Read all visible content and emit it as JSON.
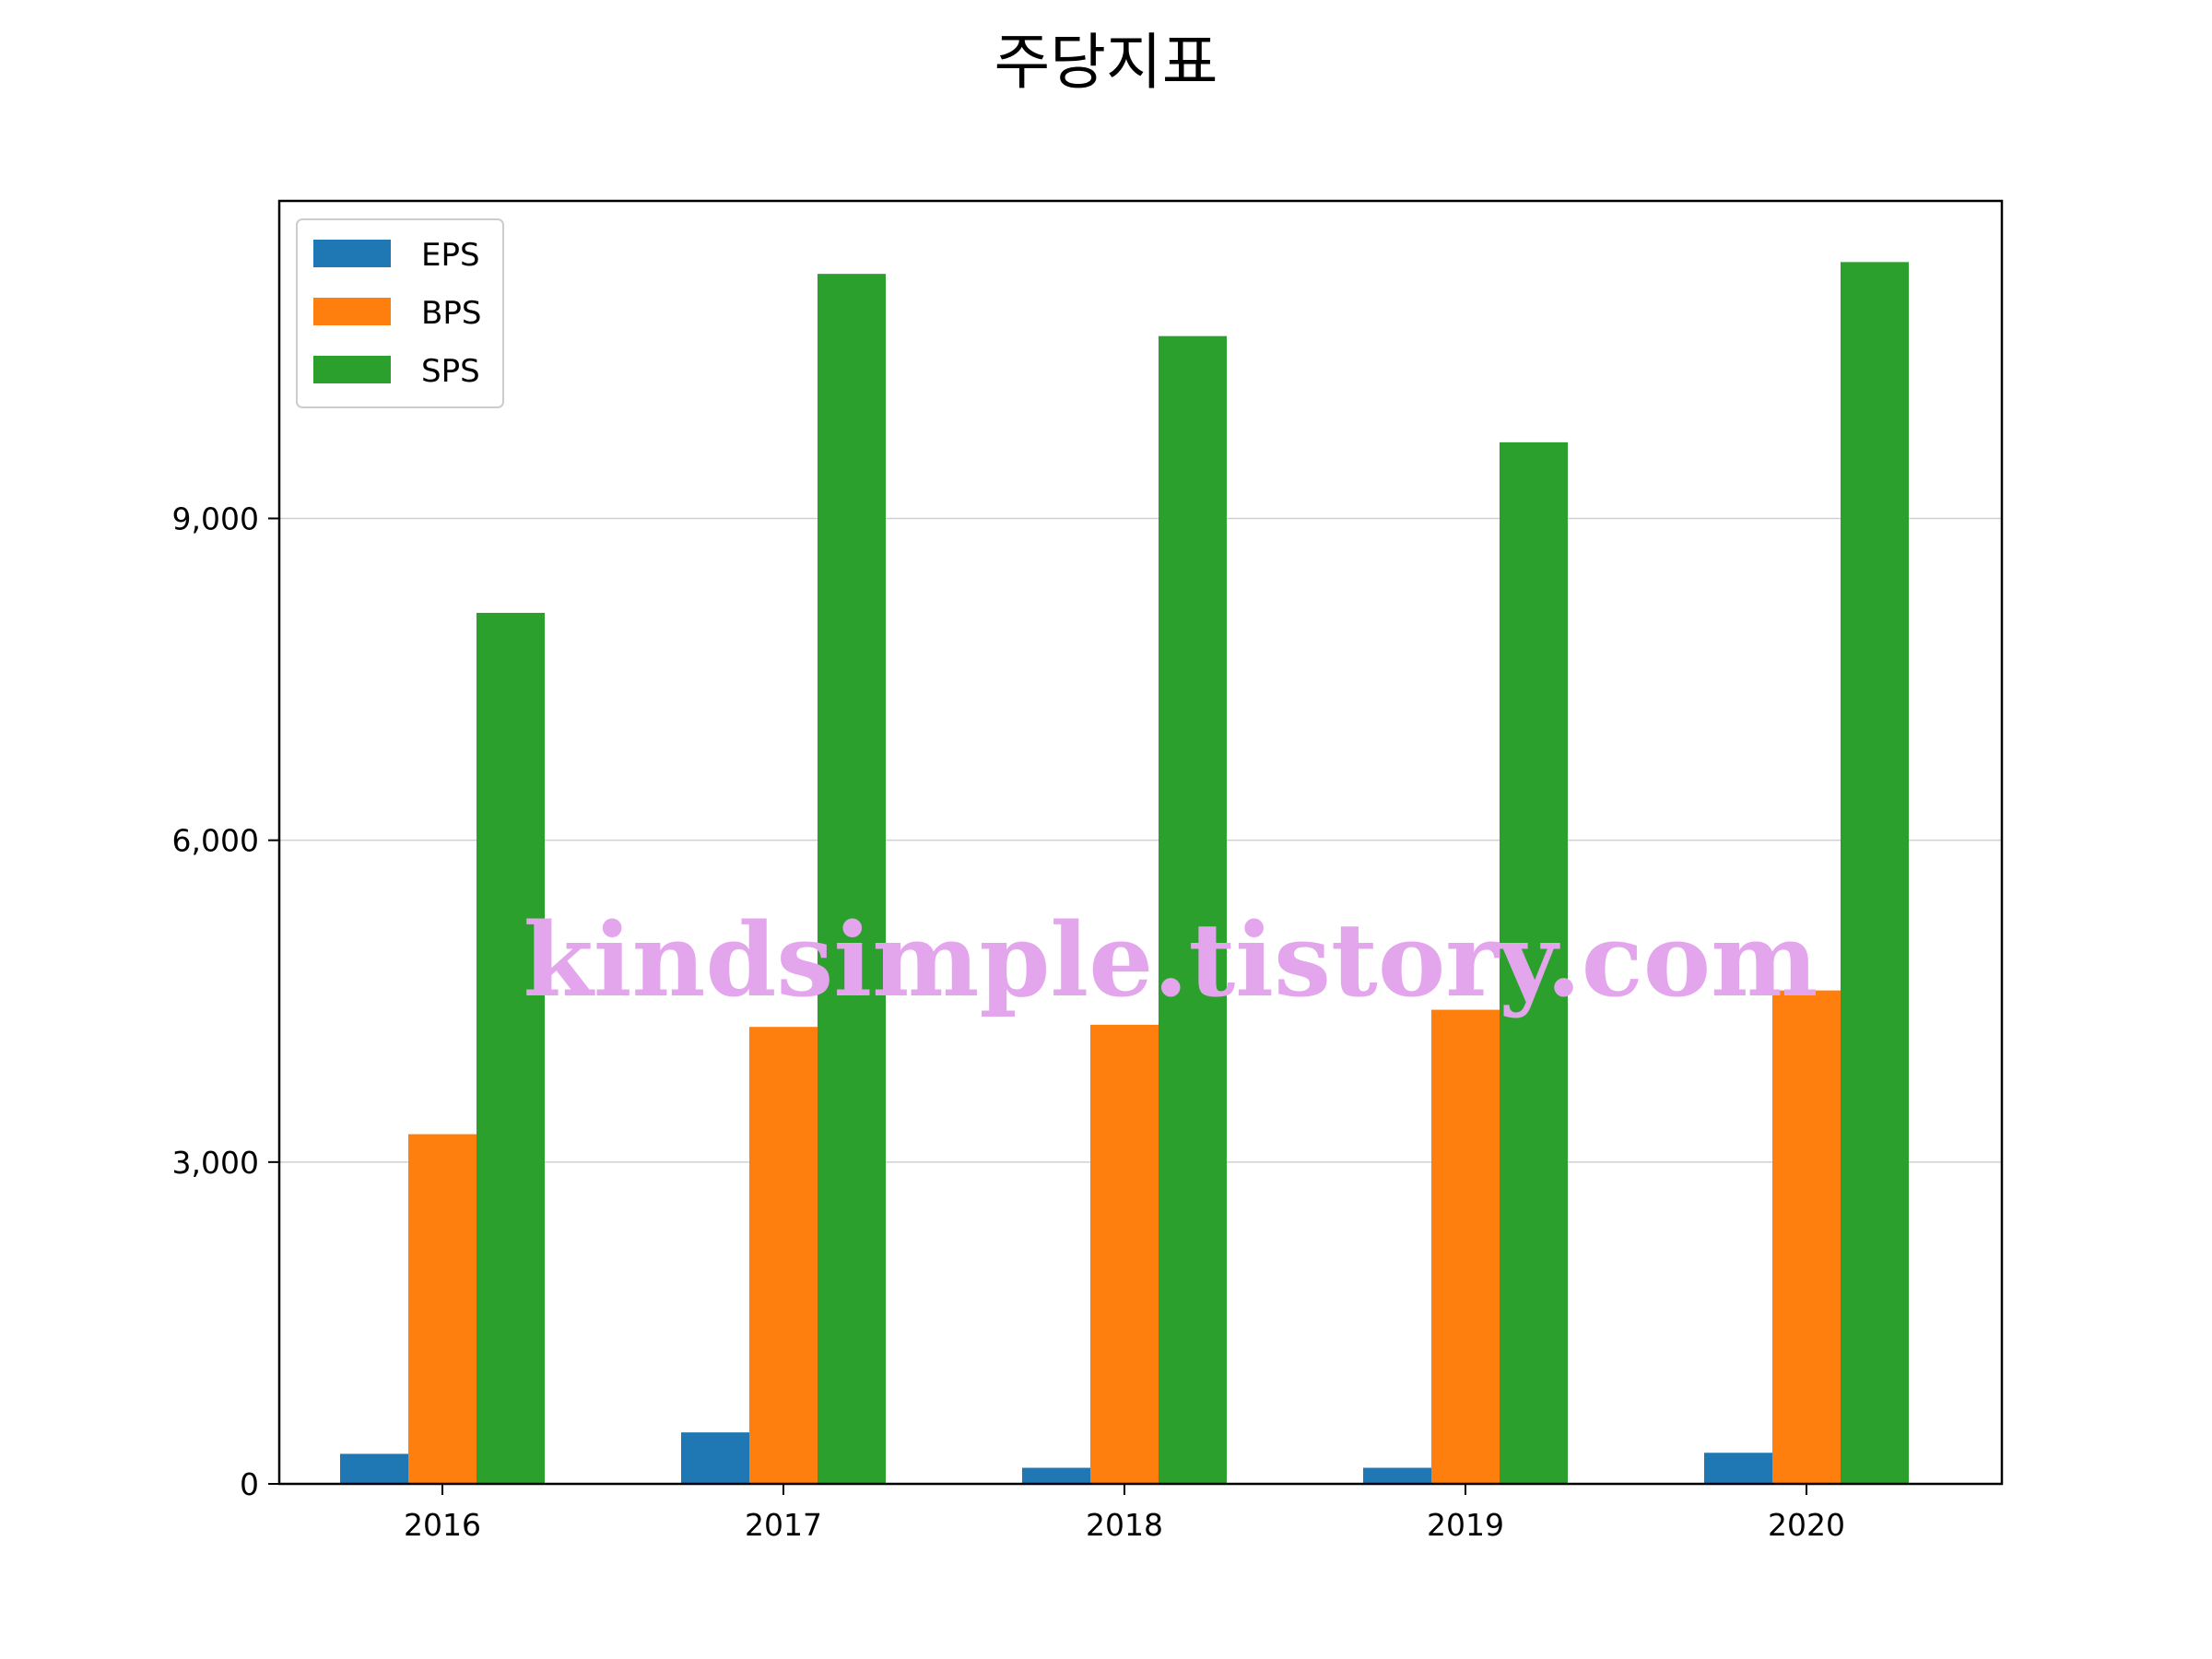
{
  "chart_data": {
    "type": "bar",
    "title": "주당지표",
    "categories": [
      "2016",
      "2017",
      "2018",
      "2019",
      "2020"
    ],
    "series": [
      {
        "name": "EPS",
        "color": "#1f77b4",
        "values": [
          280,
          480,
          150,
          150,
          290
        ]
      },
      {
        "name": "BPS",
        "color": "#ff7f0e",
        "values": [
          3260,
          4260,
          4280,
          4420,
          4600
        ]
      },
      {
        "name": "SPS",
        "color": "#2ca02c",
        "values": [
          8120,
          11280,
          10700,
          9710,
          11390
        ]
      }
    ],
    "yticks": [
      0,
      3000,
      6000,
      9000
    ],
    "ytick_labels": [
      "0",
      "3,000",
      "6,000",
      "9,000"
    ],
    "ylim": [
      0,
      11960
    ],
    "xlabel": "",
    "ylabel": "",
    "grid": "y",
    "legend_position": "top-left"
  },
  "watermark": "kindsimple.tistory.com"
}
